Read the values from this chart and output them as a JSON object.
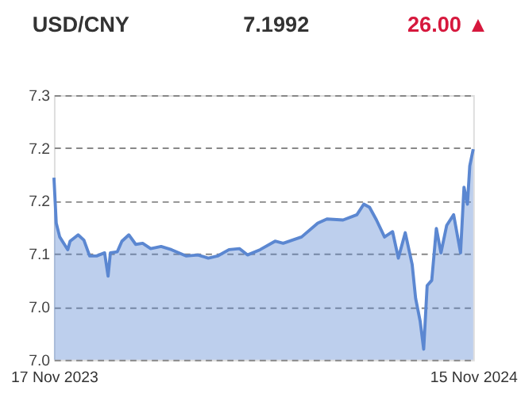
{
  "chart_data": {
    "type": "area",
    "title": "USD/CNY",
    "annotations": [
      "7.1992",
      "26.00 ▲"
    ],
    "x": [
      "2023-11-17",
      "2023-11-19",
      "2023-11-22",
      "2023-11-29",
      "2023-12-01",
      "2023-12-08",
      "2023-12-13",
      "2023-12-18",
      "2023-12-24",
      "2023-12-31",
      "2024-01-03",
      "2024-01-05",
      "2024-01-11",
      "2024-01-15",
      "2024-01-21",
      "2024-01-27",
      "2024-02-02",
      "2024-02-09",
      "2024-02-18",
      "2024-02-27",
      "2024-03-11",
      "2024-03-21",
      "2024-03-30",
      "2024-04-07",
      "2024-04-17",
      "2024-04-26",
      "2024-05-03",
      "2024-05-14",
      "2024-05-27",
      "2024-06-03",
      "2024-06-19",
      "2024-07-03",
      "2024-07-11",
      "2024-07-25",
      "2024-08-06",
      "2024-08-12",
      "2024-08-17",
      "2024-08-23",
      "2024-08-30",
      "2024-09-06",
      "2024-09-11",
      "2024-09-17",
      "2024-09-23",
      "2024-09-26",
      "2024-09-30",
      "2024-10-03",
      "2024-10-06",
      "2024-10-10",
      "2024-10-14",
      "2024-10-18",
      "2024-10-23",
      "2024-10-29",
      "2024-11-02",
      "2024-11-04",
      "2024-11-07",
      "2024-11-10",
      "2024-11-12",
      "2024-11-15"
    ],
    "series": [
      {
        "color": "#5b87d1",
        "values": [
          7.172,
          7.129,
          7.116,
          7.104,
          7.112,
          7.118,
          7.113,
          7.098,
          7.098,
          7.101,
          7.079,
          7.101,
          7.102,
          7.112,
          7.118,
          7.109,
          7.11,
          7.105,
          7.107,
          7.104,
          7.098,
          7.099,
          7.096,
          7.098,
          7.104,
          7.105,
          7.099,
          7.104,
          7.112,
          7.11,
          7.116,
          7.129,
          7.133,
          7.132,
          7.137,
          7.147,
          7.144,
          7.132,
          7.116,
          7.121,
          7.096,
          7.12,
          7.09,
          7.058,
          7.036,
          7.01,
          7.07,
          7.075,
          7.124,
          7.101,
          7.127,
          7.137,
          7.113,
          7.101,
          7.163,
          7.147,
          7.183,
          7.199
        ]
      }
    ],
    "xlim": [
      "2023-11-17",
      "2024-11-15"
    ],
    "xticks": [
      {
        "value": "2023-11-17",
        "label": "17 Nov 2023"
      },
      {
        "value": "2024-11-15",
        "label": "15 Nov 2024"
      }
    ],
    "ylim": [
      7.0,
      7.25
    ],
    "yticks": [
      {
        "value": 7.0,
        "label": "7.0"
      },
      {
        "value": 7.05,
        "label": "7.0"
      },
      {
        "value": 7.1,
        "label": "7.1"
      },
      {
        "value": 7.15,
        "label": "7.2"
      },
      {
        "value": 7.2,
        "label": "7.2"
      },
      {
        "value": 7.25,
        "label": "7.3"
      }
    ],
    "grid": "y"
  }
}
